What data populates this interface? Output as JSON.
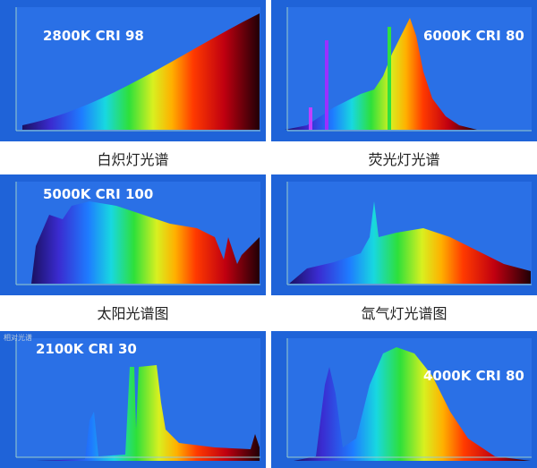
{
  "spectra": [
    {
      "label": "2800K CRI 98",
      "caption": "白炽灯光谱"
    },
    {
      "label": "6000K CRI 80",
      "caption": "荧光灯光谱"
    },
    {
      "label": "5000K CRI 100",
      "caption": "太阳光谱图"
    },
    {
      "caption": "氙气灯光谱图"
    },
    {
      "label": "2100K CRI 30",
      "axis_title": "相对光谱"
    },
    {
      "label": "4000K CRI 80"
    }
  ]
}
